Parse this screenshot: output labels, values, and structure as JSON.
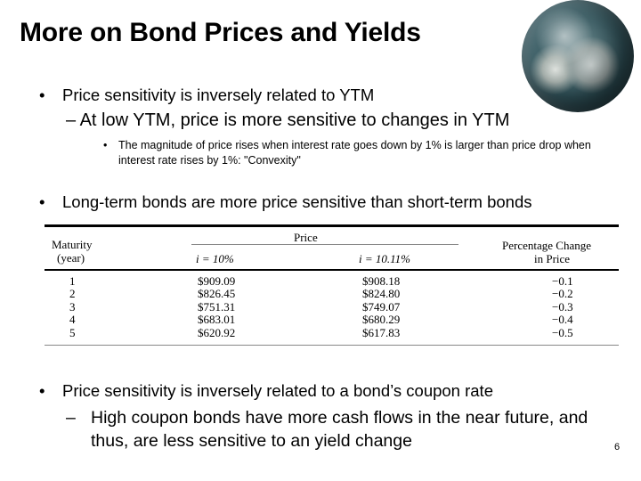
{
  "slide": {
    "title": "More on Bond Prices and Yields",
    "page_number": "6"
  },
  "bullets": {
    "b1": "Price sensitivity is inversely related to YTM",
    "b2": "At low YTM, price is more sensitive to changes in YTM",
    "b3": "The magnitude of price rises when interest rate goes down by 1% is larger than price drop when interest rate rises by 1%: \"Convexity\"",
    "b4": "Long-term bonds are more price sensitive than short-term bonds",
    "b5": "Price sensitivity is inversely related to a bond’s coupon rate",
    "b6": "High coupon bonds have more cash flows in the near future, and thus, are less sensitive to an yield change"
  },
  "markers": {
    "bullet": "•",
    "dash": "–"
  },
  "table": {
    "header_maturity_1": "Maturity",
    "header_maturity_2": "(year)",
    "header_price": "Price",
    "header_i1": "i = 10%",
    "header_i2": "i = 10.11%",
    "header_pct_1": "Percentage Change",
    "header_pct_2": "in Price",
    "rows": [
      {
        "maturity": "1",
        "price_10": "$909.09",
        "price_1011": "$908.18",
        "pct": "−0.1"
      },
      {
        "maturity": "2",
        "price_10": "$826.45",
        "price_1011": "$824.80",
        "pct": "−0.2"
      },
      {
        "maturity": "3",
        "price_10": "$751.31",
        "price_1011": "$749.07",
        "pct": "−0.3"
      },
      {
        "maturity": "4",
        "price_10": "$683.01",
        "price_1011": "$680.29",
        "pct": "−0.4"
      },
      {
        "maturity": "5",
        "price_10": "$620.92",
        "price_1011": "$617.83",
        "pct": "−0.5"
      }
    ]
  }
}
